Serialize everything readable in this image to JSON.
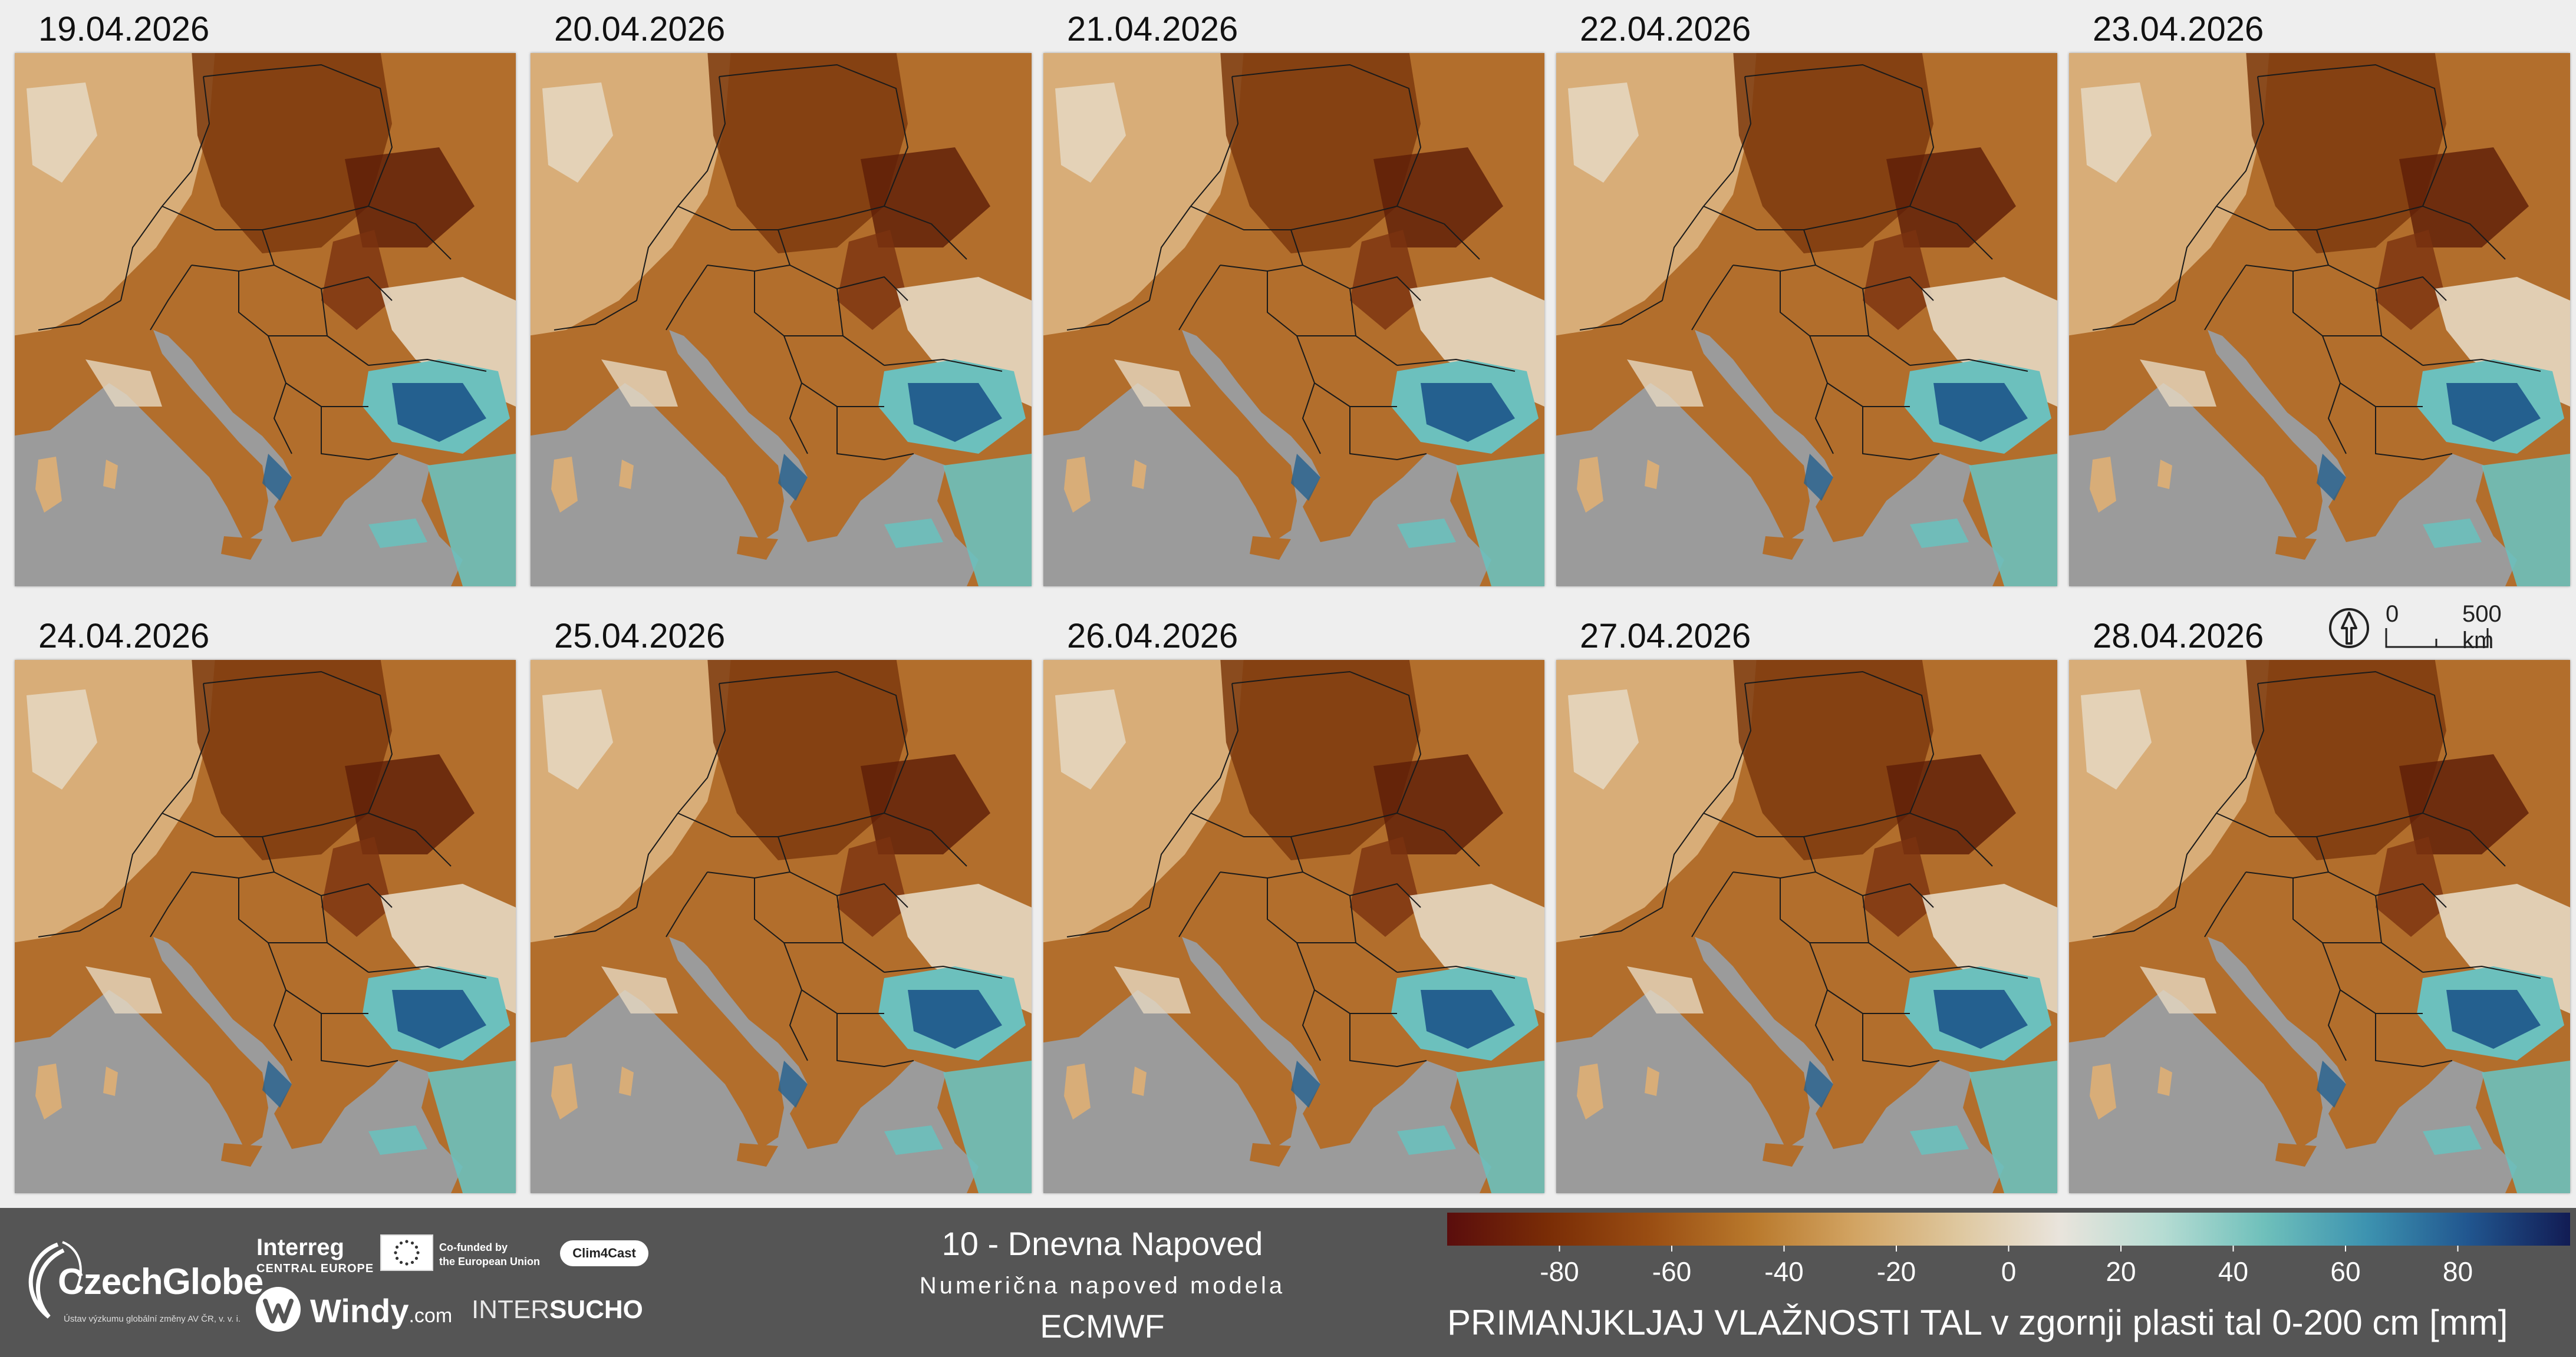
{
  "panels": [
    {
      "date": "19.04.2026"
    },
    {
      "date": "20.04.2026"
    },
    {
      "date": "21.04.2026"
    },
    {
      "date": "22.04.2026"
    },
    {
      "date": "23.04.2026"
    },
    {
      "date": "24.04.2026"
    },
    {
      "date": "25.04.2026"
    },
    {
      "date": "26.04.2026"
    },
    {
      "date": "27.04.2026"
    },
    {
      "date": "28.04.2026"
    }
  ],
  "scalebar": {
    "zero": "0",
    "distance": "500 km",
    "icon": "north-arrow-icon"
  },
  "footer": {
    "logos": {
      "czechglobe": "CzechGlobe",
      "czechglobe_sub": "Ústav výzkumu globální změny AV ČR, v. v. i.",
      "interreg": "Interreg",
      "interreg_sub": "CENTRAL EUROPE",
      "eu_line1": "Co-funded by",
      "eu_line2": "the European Union",
      "clim4cast": "Clim4Cast",
      "windy": "Windy",
      "windy_domain": ".com",
      "intersucho_a": "INTER",
      "intersucho_b": "SUCHO"
    },
    "title_line1": "10 - Dnevna Napoved",
    "title_line2": "Numerična napoved modela",
    "title_line3": "ECMWF"
  },
  "legend": {
    "title": "PRIMANJKLJAJ VLAŽNOSTI TAL v zgornji plasti tal 0-200 cm [mm]",
    "min": -100,
    "max": 100,
    "ticks": [
      -80,
      -60,
      -40,
      -20,
      0,
      20,
      40,
      60,
      80
    ],
    "colors": [
      "#5a0d0d",
      "#7a2d06",
      "#9a4e13",
      "#b9792c",
      "#d2a463",
      "#dec79e",
      "#e9e4dc",
      "#b6dcd3",
      "#6fc0bb",
      "#3d93b0",
      "#21568f",
      "#121c54"
    ]
  },
  "colors": {
    "sea": "#9b9b9b",
    "land_dry_dark": "#7d3a0e",
    "land_dry": "#b26e2c",
    "land_dry_light": "#d8ad78",
    "land_neutral": "#e6d8c2",
    "land_wet": "#6cc0bd",
    "land_wet_dark": "#24608f",
    "footer_bg": "#555555"
  }
}
